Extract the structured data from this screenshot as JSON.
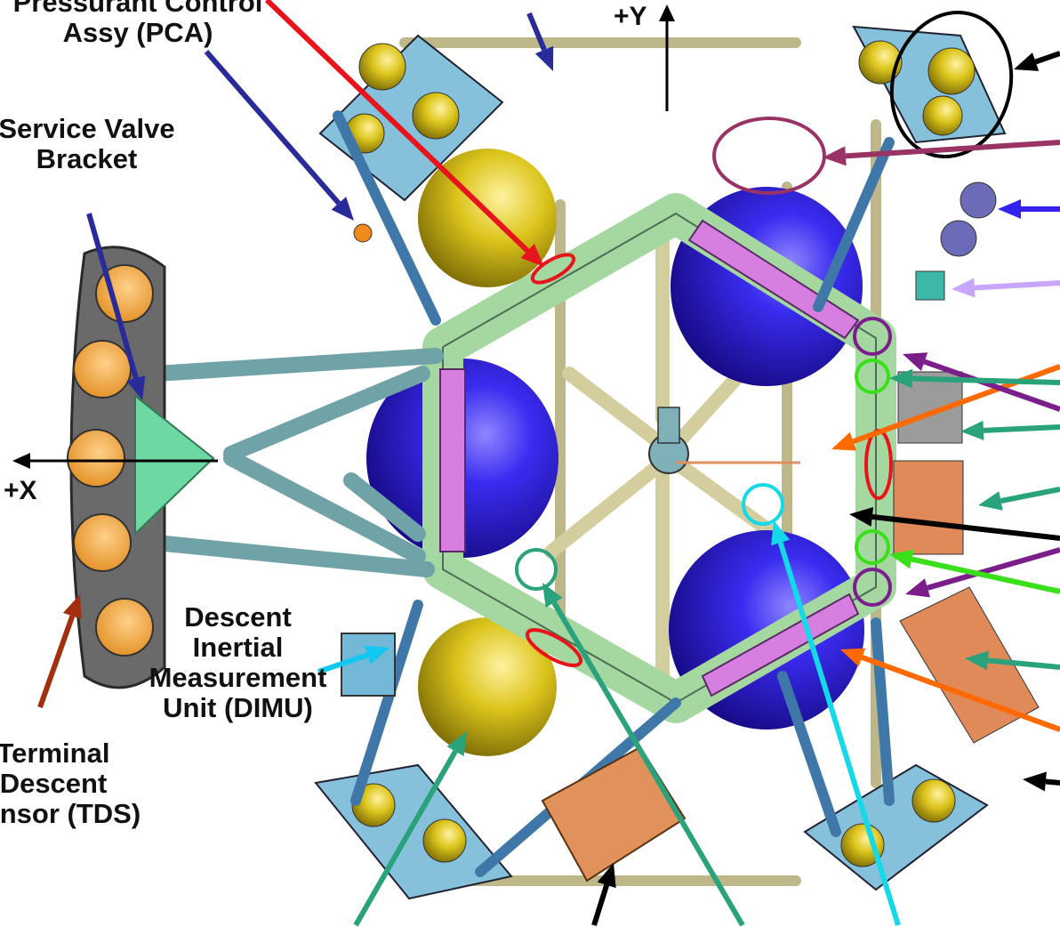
{
  "labels": {
    "pca": [
      "Pressurant Control",
      "Assy (PCA)"
    ],
    "svb": [
      "Service Valve",
      "Bracket"
    ],
    "dimu": [
      "Descent",
      "Inertial",
      "Measurement",
      "Unit (DIMU)"
    ],
    "tds": [
      "Terminal",
      "Descent",
      "Sensor (TDS)"
    ]
  },
  "axes": {
    "y": "+Y",
    "x": "+X"
  },
  "colors": {
    "frame": "#9fd6a3",
    "strut": "#6fa3a8",
    "tank_blue": "#2a1ed0",
    "tank_yellow": "#d8c21a",
    "truss": "#d9d2a6",
    "panel_pink": "#d77fe0",
    "plate": "#8ccae0",
    "tds_body": "#686868",
    "tds_disk": "#f3a535",
    "orange_box": "#e08a5a",
    "arrow_red": "#e8141c",
    "arrow_navy": "#2a2b9a",
    "arrow_teal": "#2aa37c",
    "arrow_cyan": "#15d9e8",
    "arrow_orange": "#ff6a00",
    "arrow_purple": "#7b1e8c",
    "arrow_green": "#39e01a",
    "arrow_plum": "#993366",
    "arrow_blue": "#3322ee",
    "arrow_lavender": "#c8a6ff",
    "arrow_brown": "#a23010",
    "arrow_sky": "#12c8f0",
    "arrow_black": "#000000"
  }
}
